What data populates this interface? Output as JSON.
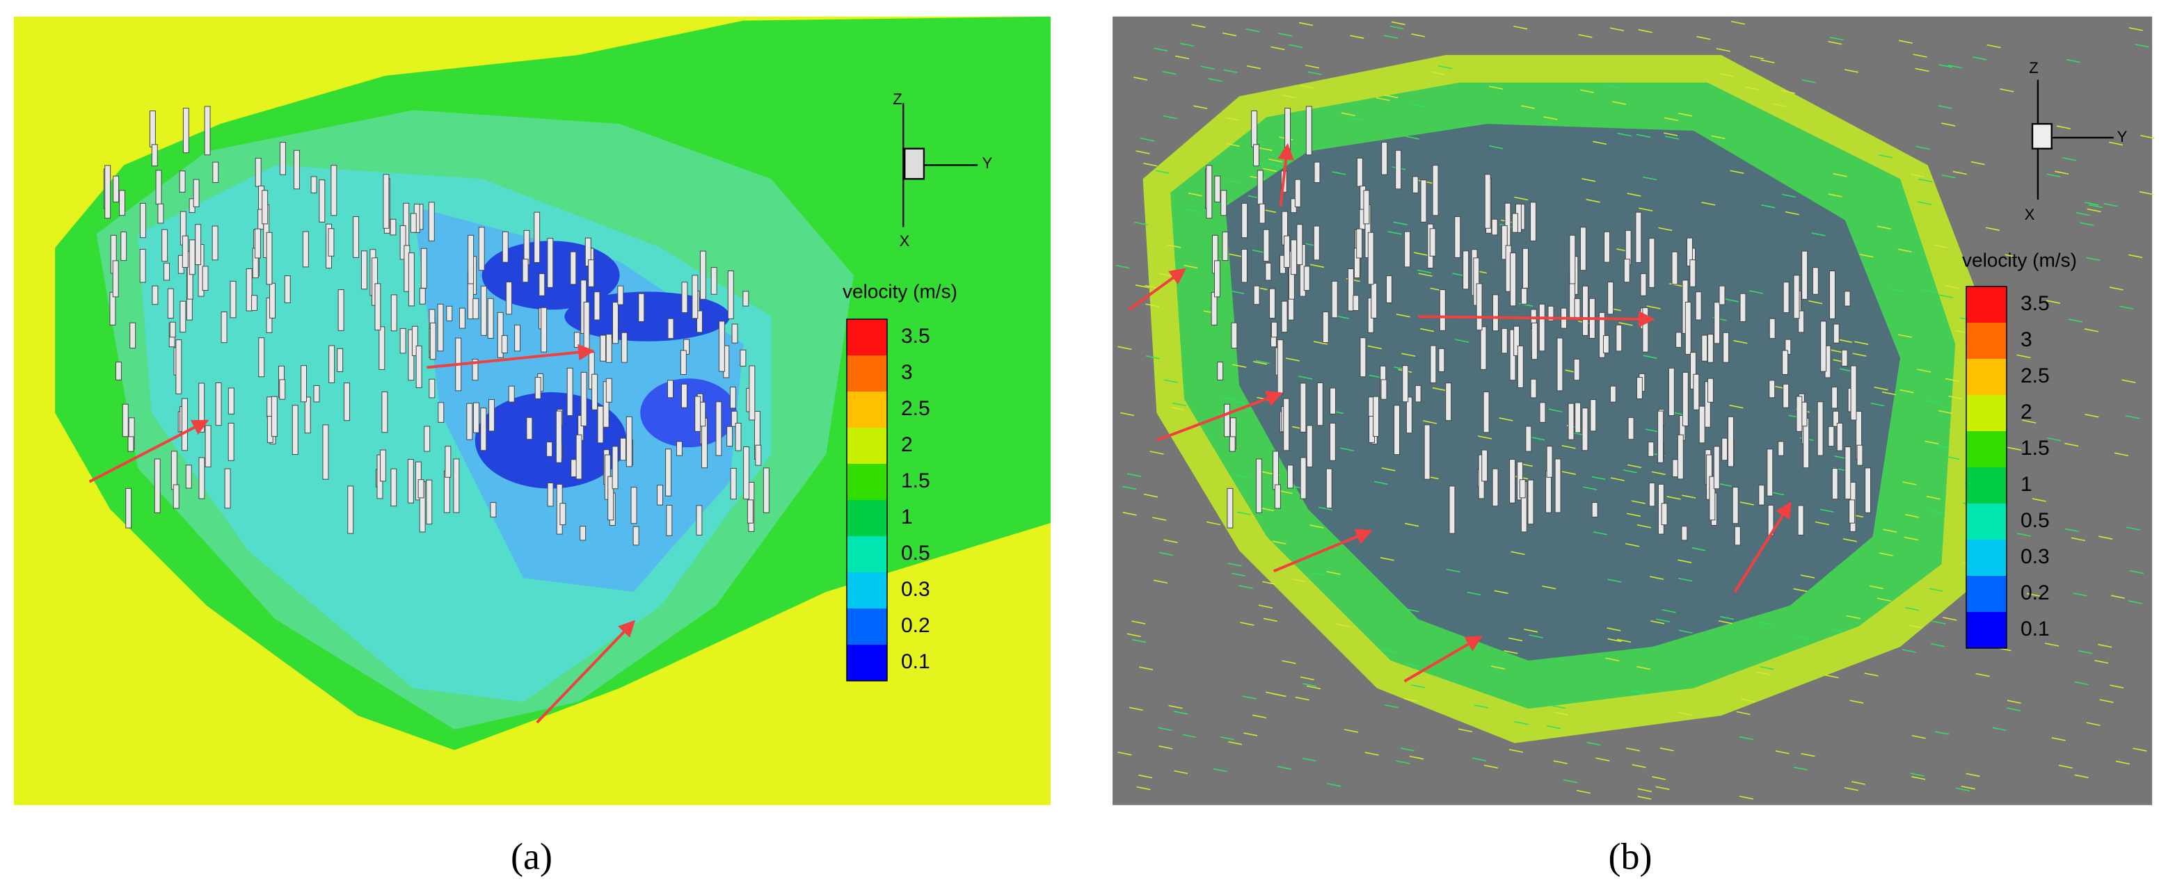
{
  "panels": [
    {
      "label": "(a)",
      "axes": {
        "z": "Z",
        "y": "Y",
        "x": "X"
      },
      "legend": {
        "title": "velocity (m/s)",
        "entries": [
          "3.5",
          "3",
          "2.5",
          "2",
          "1.5",
          "1",
          "0.5",
          "0.3",
          "0.2",
          "0.1"
        ],
        "colors": [
          "#ff1010",
          "#ff6a00",
          "#ffc000",
          "#c8f000",
          "#33dd00",
          "#00cc44",
          "#00e6b0",
          "#00c8f0",
          "#0064ff",
          "#0000ff"
        ]
      }
    },
    {
      "label": "(b)",
      "axes": {
        "z": "Z",
        "y": "Y",
        "x": "X"
      },
      "legend": {
        "title": "velocity (m/s)",
        "entries": [
          "3.5",
          "3",
          "2.5",
          "2",
          "1.5",
          "1",
          "0.5",
          "0.3",
          "0.2",
          "0.1"
        ],
        "colors": [
          "#ff1010",
          "#ff6a00",
          "#ffc000",
          "#c8f000",
          "#33dd00",
          "#00cc44",
          "#00e6b0",
          "#00c8f0",
          "#0064ff",
          "#0000ff"
        ]
      }
    }
  ]
}
